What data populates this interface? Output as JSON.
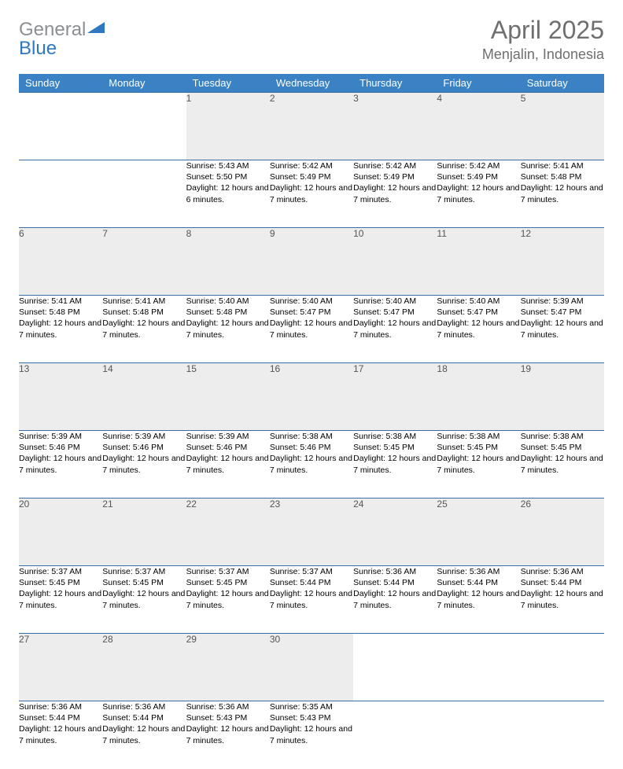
{
  "logo": {
    "part1": "General",
    "part2": "Blue"
  },
  "title": {
    "month": "April 2025",
    "location": "Menjalin, Indonesia"
  },
  "colors": {
    "header_bg": "#3a82c4",
    "header_text": "#ffffff",
    "daynum_bg": "#ededed",
    "daynum_text": "#555555",
    "rule": "#3a6ea5",
    "logo_gray": "#8a8f94",
    "logo_blue": "#2f78bf",
    "title_color": "#6f6f6f"
  },
  "day_headers": [
    "Sunday",
    "Monday",
    "Tuesday",
    "Wednesday",
    "Thursday",
    "Friday",
    "Saturday"
  ],
  "weeks": [
    [
      {
        "n": "",
        "sr": "",
        "ss": "",
        "dl": ""
      },
      {
        "n": "",
        "sr": "",
        "ss": "",
        "dl": ""
      },
      {
        "n": "1",
        "sr": "Sunrise: 5:43 AM",
        "ss": "Sunset: 5:50 PM",
        "dl": "Daylight: 12 hours and 6 minutes."
      },
      {
        "n": "2",
        "sr": "Sunrise: 5:42 AM",
        "ss": "Sunset: 5:49 PM",
        "dl": "Daylight: 12 hours and 7 minutes."
      },
      {
        "n": "3",
        "sr": "Sunrise: 5:42 AM",
        "ss": "Sunset: 5:49 PM",
        "dl": "Daylight: 12 hours and 7 minutes."
      },
      {
        "n": "4",
        "sr": "Sunrise: 5:42 AM",
        "ss": "Sunset: 5:49 PM",
        "dl": "Daylight: 12 hours and 7 minutes."
      },
      {
        "n": "5",
        "sr": "Sunrise: 5:41 AM",
        "ss": "Sunset: 5:48 PM",
        "dl": "Daylight: 12 hours and 7 minutes."
      }
    ],
    [
      {
        "n": "6",
        "sr": "Sunrise: 5:41 AM",
        "ss": "Sunset: 5:48 PM",
        "dl": "Daylight: 12 hours and 7 minutes."
      },
      {
        "n": "7",
        "sr": "Sunrise: 5:41 AM",
        "ss": "Sunset: 5:48 PM",
        "dl": "Daylight: 12 hours and 7 minutes."
      },
      {
        "n": "8",
        "sr": "Sunrise: 5:40 AM",
        "ss": "Sunset: 5:48 PM",
        "dl": "Daylight: 12 hours and 7 minutes."
      },
      {
        "n": "9",
        "sr": "Sunrise: 5:40 AM",
        "ss": "Sunset: 5:47 PM",
        "dl": "Daylight: 12 hours and 7 minutes."
      },
      {
        "n": "10",
        "sr": "Sunrise: 5:40 AM",
        "ss": "Sunset: 5:47 PM",
        "dl": "Daylight: 12 hours and 7 minutes."
      },
      {
        "n": "11",
        "sr": "Sunrise: 5:40 AM",
        "ss": "Sunset: 5:47 PM",
        "dl": "Daylight: 12 hours and 7 minutes."
      },
      {
        "n": "12",
        "sr": "Sunrise: 5:39 AM",
        "ss": "Sunset: 5:47 PM",
        "dl": "Daylight: 12 hours and 7 minutes."
      }
    ],
    [
      {
        "n": "13",
        "sr": "Sunrise: 5:39 AM",
        "ss": "Sunset: 5:46 PM",
        "dl": "Daylight: 12 hours and 7 minutes."
      },
      {
        "n": "14",
        "sr": "Sunrise: 5:39 AM",
        "ss": "Sunset: 5:46 PM",
        "dl": "Daylight: 12 hours and 7 minutes."
      },
      {
        "n": "15",
        "sr": "Sunrise: 5:39 AM",
        "ss": "Sunset: 5:46 PM",
        "dl": "Daylight: 12 hours and 7 minutes."
      },
      {
        "n": "16",
        "sr": "Sunrise: 5:38 AM",
        "ss": "Sunset: 5:46 PM",
        "dl": "Daylight: 12 hours and 7 minutes."
      },
      {
        "n": "17",
        "sr": "Sunrise: 5:38 AM",
        "ss": "Sunset: 5:45 PM",
        "dl": "Daylight: 12 hours and 7 minutes."
      },
      {
        "n": "18",
        "sr": "Sunrise: 5:38 AM",
        "ss": "Sunset: 5:45 PM",
        "dl": "Daylight: 12 hours and 7 minutes."
      },
      {
        "n": "19",
        "sr": "Sunrise: 5:38 AM",
        "ss": "Sunset: 5:45 PM",
        "dl": "Daylight: 12 hours and 7 minutes."
      }
    ],
    [
      {
        "n": "20",
        "sr": "Sunrise: 5:37 AM",
        "ss": "Sunset: 5:45 PM",
        "dl": "Daylight: 12 hours and 7 minutes."
      },
      {
        "n": "21",
        "sr": "Sunrise: 5:37 AM",
        "ss": "Sunset: 5:45 PM",
        "dl": "Daylight: 12 hours and 7 minutes."
      },
      {
        "n": "22",
        "sr": "Sunrise: 5:37 AM",
        "ss": "Sunset: 5:45 PM",
        "dl": "Daylight: 12 hours and 7 minutes."
      },
      {
        "n": "23",
        "sr": "Sunrise: 5:37 AM",
        "ss": "Sunset: 5:44 PM",
        "dl": "Daylight: 12 hours and 7 minutes."
      },
      {
        "n": "24",
        "sr": "Sunrise: 5:36 AM",
        "ss": "Sunset: 5:44 PM",
        "dl": "Daylight: 12 hours and 7 minutes."
      },
      {
        "n": "25",
        "sr": "Sunrise: 5:36 AM",
        "ss": "Sunset: 5:44 PM",
        "dl": "Daylight: 12 hours and 7 minutes."
      },
      {
        "n": "26",
        "sr": "Sunrise: 5:36 AM",
        "ss": "Sunset: 5:44 PM",
        "dl": "Daylight: 12 hours and 7 minutes."
      }
    ],
    [
      {
        "n": "27",
        "sr": "Sunrise: 5:36 AM",
        "ss": "Sunset: 5:44 PM",
        "dl": "Daylight: 12 hours and 7 minutes."
      },
      {
        "n": "28",
        "sr": "Sunrise: 5:36 AM",
        "ss": "Sunset: 5:44 PM",
        "dl": "Daylight: 12 hours and 7 minutes."
      },
      {
        "n": "29",
        "sr": "Sunrise: 5:36 AM",
        "ss": "Sunset: 5:43 PM",
        "dl": "Daylight: 12 hours and 7 minutes."
      },
      {
        "n": "30",
        "sr": "Sunrise: 5:35 AM",
        "ss": "Sunset: 5:43 PM",
        "dl": "Daylight: 12 hours and 7 minutes."
      },
      {
        "n": "",
        "sr": "",
        "ss": "",
        "dl": ""
      },
      {
        "n": "",
        "sr": "",
        "ss": "",
        "dl": ""
      },
      {
        "n": "",
        "sr": "",
        "ss": "",
        "dl": ""
      }
    ]
  ]
}
